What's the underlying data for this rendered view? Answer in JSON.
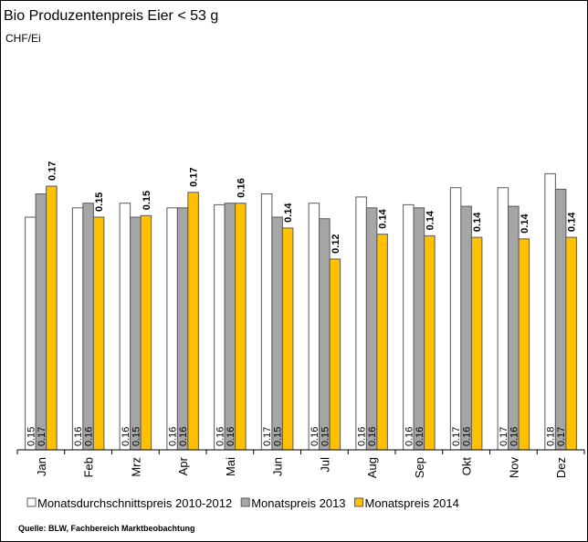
{
  "chart_data": {
    "type": "bar",
    "title": "Bio Produzentenpreis Eier < 53 g",
    "y_label": "CHF/Ei",
    "source": "Quelle: BLW, Fachbereich Marktbeobachtung",
    "categories": [
      "Jan",
      "Feb",
      "Mrz",
      "Apr",
      "Mai",
      "Jun",
      "Jul",
      "Aug",
      "Sep",
      "Okt",
      "Nov",
      "Dez"
    ],
    "ylim": [
      0,
      0.2
    ],
    "series": [
      {
        "name": "Monatsdurchschnittspreis 2010-2012",
        "color": "#ffffff",
        "stroke": "#595959",
        "values": [
          0.15,
          0.156,
          0.159,
          0.156,
          0.158,
          0.165,
          0.159,
          0.163,
          0.158,
          0.169,
          0.169,
          0.178
        ],
        "value_labels": [
          "0.15",
          "0.16",
          "0.16",
          "0.16",
          "0.16",
          "0.17",
          "0.16",
          "0.16",
          "0.16",
          "0.17",
          "0.17",
          "0.18"
        ]
      },
      {
        "name": "Monatspreis 2013",
        "color": "#a6a6a6",
        "stroke": "#595959",
        "values": [
          0.165,
          0.159,
          0.15,
          0.156,
          0.159,
          0.15,
          0.149,
          0.156,
          0.156,
          0.157,
          0.157,
          0.168
        ],
        "value_labels": [
          "0.17",
          "0.16",
          "0.15",
          "0.16",
          "0.16",
          "0.15",
          "0.15",
          "0.16",
          "0.16",
          "0.16",
          "0.16",
          "0.17"
        ]
      },
      {
        "name": "Monatspreis 2014",
        "color": "#ffc000",
        "stroke": "#595959",
        "values": [
          0.17,
          0.15,
          0.151,
          0.166,
          0.159,
          0.143,
          0.123,
          0.139,
          0.138,
          0.137,
          0.136,
          0.137
        ],
        "value_labels": [
          "0.17",
          "0.15",
          "0.15",
          "0.17",
          "0.16",
          "0.14",
          "0.12",
          "0.14",
          "0.14",
          "0.14",
          "0.14",
          "0.14"
        ]
      }
    ]
  }
}
